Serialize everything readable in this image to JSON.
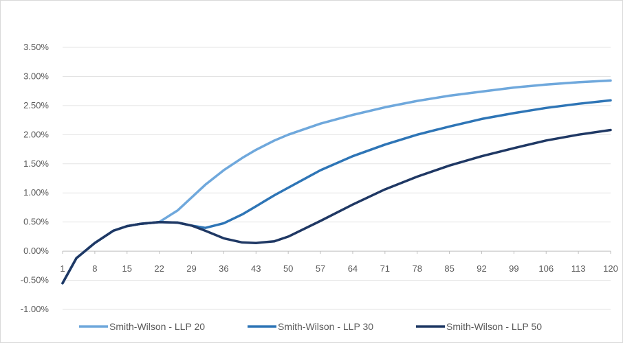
{
  "chart_data": {
    "type": "line",
    "title": "",
    "xlabel": "",
    "ylabel": "",
    "x_ticks": [
      "1",
      "8",
      "15",
      "22",
      "29",
      "36",
      "43",
      "50",
      "57",
      "64",
      "71",
      "78",
      "85",
      "92",
      "99",
      "106",
      "113",
      "120"
    ],
    "y_ticks": [
      "3.50%",
      "3.00%",
      "2.50%",
      "2.00%",
      "1.50%",
      "1.00%",
      "0.50%",
      "0.00%",
      "-0.50%",
      "-1.00%"
    ],
    "ylim": [
      -1.0,
      3.5
    ],
    "xlim": [
      1,
      120
    ],
    "grid": "horizontal",
    "legend_position": "bottom",
    "x": [
      1,
      4,
      8,
      12,
      15,
      18,
      22,
      26,
      29,
      32,
      36,
      40,
      43,
      47,
      50,
      57,
      64,
      71,
      78,
      85,
      92,
      99,
      106,
      113,
      120
    ],
    "series": [
      {
        "name": "Smith-Wilson  - LLP 20",
        "color": "#6fa8dc",
        "values": [
          -0.55,
          -0.12,
          0.14,
          0.35,
          0.43,
          0.47,
          0.5,
          0.7,
          0.92,
          1.14,
          1.39,
          1.6,
          1.74,
          1.9,
          2.0,
          2.19,
          2.34,
          2.47,
          2.58,
          2.67,
          2.74,
          2.81,
          2.86,
          2.9,
          2.93
        ]
      },
      {
        "name": "Smith-Wilson  - LLP 30",
        "color": "#2e75b6",
        "values": [
          -0.55,
          -0.12,
          0.14,
          0.35,
          0.43,
          0.47,
          0.5,
          0.49,
          0.44,
          0.4,
          0.48,
          0.63,
          0.77,
          0.96,
          1.09,
          1.39,
          1.63,
          1.83,
          2.0,
          2.14,
          2.27,
          2.37,
          2.46,
          2.53,
          2.59
        ]
      },
      {
        "name": "Smith-Wilson  - LLP 50",
        "color": "#1f3864",
        "values": [
          -0.55,
          -0.12,
          0.14,
          0.35,
          0.43,
          0.47,
          0.5,
          0.49,
          0.44,
          0.35,
          0.22,
          0.15,
          0.14,
          0.17,
          0.25,
          0.52,
          0.8,
          1.06,
          1.28,
          1.47,
          1.63,
          1.77,
          1.9,
          2.0,
          2.08
        ]
      }
    ]
  }
}
